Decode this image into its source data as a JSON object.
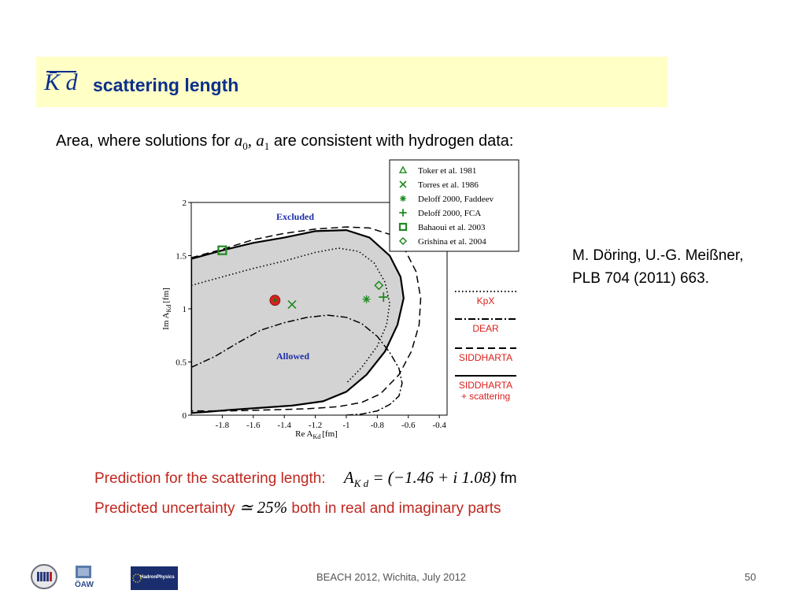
{
  "slide": {
    "title_math": "K̄ d",
    "title_text": "scattering length",
    "subtitle_pre": "Area, where solutions for",
    "subtitle_math_a": "a",
    "subtitle_sub0": "0",
    "subtitle_sep": ", ",
    "subtitle_sub1": "1",
    "subtitle_post": "are consistent with hydrogen data:",
    "citation_line1": "M. Döring, U.-G. Meißner,",
    "citation_line2": "PLB 704 (2011) 663.",
    "prediction_label": "Prediction for the scattering length:",
    "prediction_math_lhs": "A",
    "prediction_math_sub": "K d",
    "prediction_math_rhs": "= (−1.46 + i 1.08)",
    "prediction_unit": "fm",
    "uncertainty_label": "Predicted uncertainty",
    "uncertainty_math": "≃ 25%",
    "uncertainty_post": "both in real and imaginary parts",
    "footer_center": "BEACH 2012, Wichita, July 2012",
    "footer_page": "50",
    "logo_oaw_text": "ÖAW",
    "logo_hp_text": "HadronPhysics"
  },
  "chart_data": {
    "type": "scatter",
    "xlabel": "Re A",
    "xlabel_sub": "Kd",
    "xlabel_unit": "[fm]",
    "ylabel": "Im A",
    "ylabel_sub": "Kd",
    "ylabel_unit": "[fm]",
    "xlim": [
      -2.0,
      -0.35
    ],
    "ylim": [
      0,
      2
    ],
    "xticks": [
      "-1.8",
      "-1.6",
      "-1.4",
      "-1.2",
      "-1",
      "-0.8",
      "-0.6",
      "-0.4"
    ],
    "xtick_values": [
      -1.8,
      -1.6,
      -1.4,
      -1.2,
      -1.0,
      -0.8,
      -0.6,
      -0.4
    ],
    "yticks": [
      "0",
      "0.5",
      "1",
      "1.5",
      "2"
    ],
    "ytick_values": [
      0,
      0.5,
      1,
      1.5,
      2
    ],
    "region_labels": {
      "excluded": "Excluded",
      "allowed": "Allowed"
    },
    "allowed_region": {
      "x": [
        -2.0,
        -1.8,
        -1.6,
        -1.4,
        -1.2,
        -1.0,
        -0.85,
        -0.72,
        -0.65,
        -0.63,
        -0.67,
        -0.75,
        -0.87,
        -1.0,
        -1.15,
        -1.35,
        -1.55,
        -1.75,
        -1.9,
        -2.0
      ],
      "y": [
        1.47,
        1.55,
        1.62,
        1.67,
        1.73,
        1.74,
        1.67,
        1.5,
        1.3,
        1.1,
        0.85,
        0.6,
        0.38,
        0.22,
        0.13,
        0.09,
        0.07,
        0.05,
        0.03,
        0.02
      ]
    },
    "curves": [
      {
        "name": "KpX",
        "style": "dotted",
        "x": [
          -2.0,
          -1.8,
          -1.6,
          -1.4,
          -1.2,
          -1.05,
          -0.92,
          -0.82,
          -0.75,
          -0.72,
          -0.74,
          -0.8,
          -0.9,
          -1.0
        ],
        "y": [
          1.22,
          1.3,
          1.38,
          1.45,
          1.53,
          1.57,
          1.54,
          1.43,
          1.25,
          1.05,
          0.85,
          0.65,
          0.45,
          0.3
        ]
      },
      {
        "name": "DEAR",
        "style": "dash-dot",
        "x": [
          -2.0,
          -1.85,
          -1.7,
          -1.55,
          -1.4,
          -1.25,
          -1.12,
          -1.0,
          -0.9,
          -0.8,
          -0.72,
          -0.66,
          -0.64,
          -0.66,
          -0.72,
          -0.8,
          -0.9,
          -1.0
        ],
        "y": [
          0.45,
          0.55,
          0.68,
          0.8,
          0.87,
          0.92,
          0.94,
          0.92,
          0.86,
          0.74,
          0.59,
          0.44,
          0.3,
          0.18,
          0.1,
          0.04,
          0.01,
          0.0
        ]
      },
      {
        "name": "SIDDHARTA",
        "style": "dashed",
        "x": [
          -2.0,
          -1.8,
          -1.6,
          -1.4,
          -1.2,
          -1.0,
          -0.85,
          -0.72,
          -0.62,
          -0.55,
          -0.52,
          -0.53,
          -0.58,
          -0.66,
          -0.78,
          -0.9,
          -1.05,
          -1.25,
          -1.5,
          -1.75,
          -2.0
        ],
        "y": [
          1.48,
          1.56,
          1.65,
          1.71,
          1.75,
          1.77,
          1.76,
          1.7,
          1.55,
          1.35,
          1.1,
          0.85,
          0.6,
          0.38,
          0.2,
          0.12,
          0.08,
          0.06,
          0.05,
          0.04,
          0.04
        ]
      },
      {
        "name": "SIDDHARTA\n+ scattering",
        "style": "solid",
        "x": [],
        "y": []
      }
    ],
    "series": [
      {
        "name": "Toker et al. 1981",
        "marker": "triangle",
        "x": [],
        "y": []
      },
      {
        "name": "Torres et al. 1986",
        "marker": "x",
        "x": [
          -1.35
        ],
        "y": [
          1.04
        ]
      },
      {
        "name": "Deloff 2000, Faddeev",
        "marker": "asterisk",
        "x": [
          -0.87
        ],
        "y": [
          1.09
        ]
      },
      {
        "name": "Deloff 2000, FCA",
        "marker": "plus",
        "x": [
          -0.76
        ],
        "y": [
          1.11
        ]
      },
      {
        "name": "Bahaoui et al. 2003",
        "marker": "square",
        "x": [
          -1.8
        ],
        "y": [
          1.55
        ]
      },
      {
        "name": "Grishina et al. 2004",
        "marker": "diamond",
        "x": [
          -0.79
        ],
        "y": [
          1.22
        ]
      }
    ],
    "prediction_point": {
      "marker": "circle",
      "x": -1.46,
      "y": 1.08
    },
    "legend_position": "top-right",
    "grid": false,
    "colors": {
      "region_fill": "#d3d3d3",
      "markers": "#1e8a1e",
      "prediction": "#d9201c",
      "region_label": "#1f2fa8",
      "curve_label": "#d9201c"
    }
  }
}
